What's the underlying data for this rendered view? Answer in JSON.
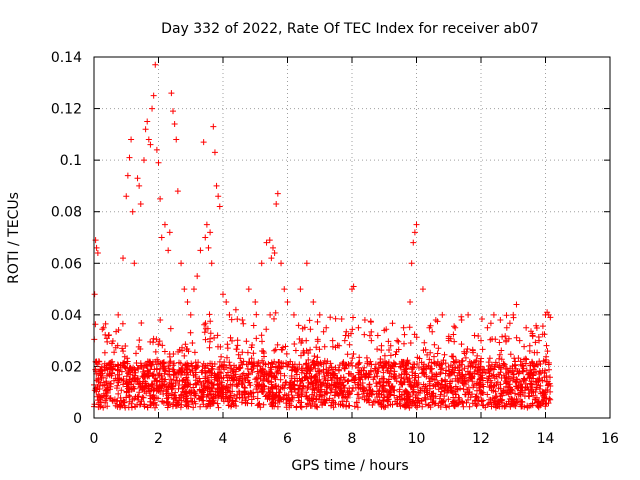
{
  "chart_data": {
    "type": "scatter",
    "title": "Day 332 of 2022, Rate Of TEC Index for receiver ab07",
    "xlabel": "GPS time / hours",
    "ylabel": "ROTI / TECUs",
    "xlim": [
      0,
      16
    ],
    "ylim": [
      0,
      0.14
    ],
    "x_ticks": [
      0,
      2,
      4,
      6,
      8,
      10,
      12,
      14,
      16
    ],
    "x_tick_labels": [
      "0",
      "2",
      "4",
      "6",
      "8",
      "10",
      "12",
      "14",
      "16"
    ],
    "y_ticks": [
      0,
      0.02,
      0.04,
      0.06,
      0.08,
      0.1,
      0.12,
      0.14
    ],
    "y_tick_labels": [
      "0",
      "0.02",
      "0.04",
      "0.06",
      "0.08",
      "0.1",
      "0.12",
      "0.14"
    ],
    "grid": true,
    "marker": "plus",
    "color": "#ff0000",
    "series": [
      {
        "name": "ROTI",
        "x": [
          0.02,
          0.05,
          0.08,
          0.12,
          0.15,
          0.2,
          0.3,
          0.45,
          0.6,
          0.75,
          0.9,
          1.0,
          1.05,
          1.1,
          1.15,
          1.2,
          1.25,
          1.35,
          1.4,
          1.45,
          1.55,
          1.6,
          1.65,
          1.7,
          1.75,
          1.8,
          1.85,
          1.9,
          1.95,
          2.0,
          2.05,
          2.1,
          2.2,
          2.3,
          2.35,
          2.4,
          2.45,
          2.5,
          2.55,
          2.6,
          2.7,
          2.8,
          2.9,
          3.0,
          3.1,
          3.2,
          3.3,
          3.4,
          3.45,
          3.5,
          3.55,
          3.6,
          3.65,
          3.7,
          3.75,
          3.8,
          3.85,
          3.9,
          4.0,
          4.1,
          4.2,
          4.4,
          4.6,
          4.8,
          5.0,
          5.2,
          5.35,
          5.45,
          5.5,
          5.55,
          5.6,
          5.65,
          5.7,
          5.8,
          5.9,
          6.0,
          6.2,
          6.4,
          6.6,
          6.8,
          7.0,
          7.2,
          7.4,
          7.6,
          7.8,
          8.0,
          8.05,
          8.2,
          8.4,
          8.6,
          8.8,
          9.0,
          9.2,
          9.4,
          9.6,
          9.8,
          9.85,
          9.9,
          9.95,
          10.0,
          10.2,
          10.4,
          10.6,
          10.8,
          11.0,
          11.2,
          11.4,
          11.6,
          11.8,
          12.0,
          12.2,
          12.4,
          12.6,
          12.8,
          13.0,
          13.1,
          13.2,
          13.4,
          13.6,
          13.8,
          14.0,
          14.05,
          14.1,
          14.15
        ],
        "y": [
          0.048,
          0.069,
          0.066,
          0.064,
          0.022,
          0.018,
          0.035,
          0.032,
          0.02,
          0.04,
          0.062,
          0.086,
          0.094,
          0.101,
          0.108,
          0.08,
          0.06,
          0.093,
          0.09,
          0.083,
          0.1,
          0.112,
          0.115,
          0.108,
          0.106,
          0.12,
          0.125,
          0.137,
          0.104,
          0.099,
          0.085,
          0.07,
          0.075,
          0.065,
          0.072,
          0.126,
          0.119,
          0.114,
          0.108,
          0.088,
          0.06,
          0.05,
          0.045,
          0.04,
          0.05,
          0.055,
          0.065,
          0.107,
          0.07,
          0.075,
          0.066,
          0.072,
          0.06,
          0.113,
          0.103,
          0.09,
          0.086,
          0.082,
          0.048,
          0.045,
          0.04,
          0.042,
          0.038,
          0.05,
          0.045,
          0.06,
          0.068,
          0.069,
          0.062,
          0.066,
          0.064,
          0.083,
          0.087,
          0.06,
          0.05,
          0.045,
          0.04,
          0.05,
          0.06,
          0.045,
          0.04,
          0.035,
          0.03,
          0.028,
          0.032,
          0.05,
          0.051,
          0.035,
          0.038,
          0.03,
          0.032,
          0.034,
          0.028,
          0.03,
          0.035,
          0.045,
          0.06,
          0.068,
          0.072,
          0.075,
          0.05,
          0.035,
          0.038,
          0.04,
          0.03,
          0.035,
          0.038,
          0.04,
          0.032,
          0.03,
          0.035,
          0.04,
          0.038,
          0.035,
          0.04,
          0.044,
          0.03,
          0.035,
          0.032,
          0.03,
          0.04,
          0.041,
          0.04,
          0.039
        ]
      }
    ]
  }
}
